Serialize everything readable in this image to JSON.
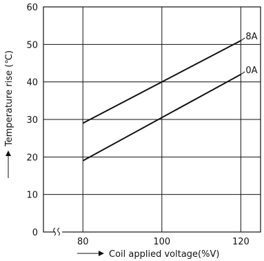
{
  "chart_data": {
    "type": "line",
    "title": "",
    "xlabel": "Coil applied voltage(%V)",
    "ylabel": "Temperature rise (℃)",
    "xlim": [
      70,
      125
    ],
    "ylim": [
      0,
      60
    ],
    "x_ticks": [
      80,
      100,
      120
    ],
    "y_ticks": [
      0,
      10,
      20,
      30,
      40,
      50,
      60
    ],
    "x_axis_break": true,
    "grid": true,
    "legend": "none",
    "series": [
      {
        "name": "8A",
        "x": [
          80,
          120
        ],
        "y": [
          29,
          51
        ]
      },
      {
        "name": "0A",
        "x": [
          80,
          120
        ],
        "y": [
          19,
          42
        ]
      }
    ]
  }
}
